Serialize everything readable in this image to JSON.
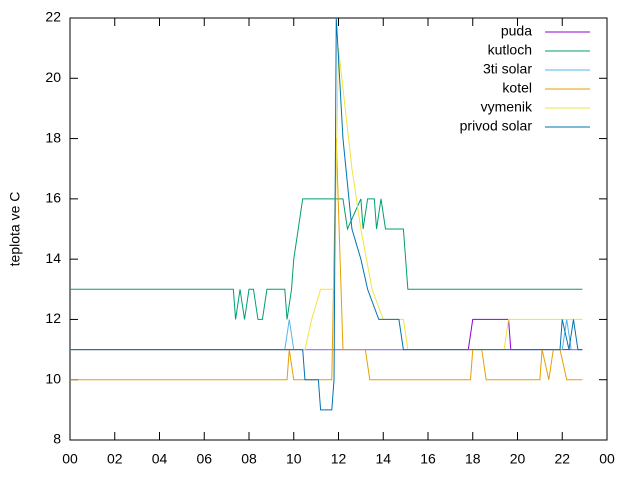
{
  "chart_data": {
    "type": "line",
    "ylabel": "teplota ve C",
    "xlim": [
      0,
      24
    ],
    "xticks": [
      {
        "value": 0,
        "label": "00"
      },
      {
        "value": 2,
        "label": "02"
      },
      {
        "value": 4,
        "label": "04"
      },
      {
        "value": 6,
        "label": "06"
      },
      {
        "value": 8,
        "label": "08"
      },
      10,
      12,
      14,
      16,
      18,
      20,
      22,
      {
        "value": 24,
        "label": "00"
      }
    ],
    "ylim": [
      8,
      22
    ],
    "yticks": [
      8,
      10,
      12,
      14,
      16,
      18,
      20,
      22
    ],
    "grid": false,
    "legend": "top-right",
    "series": [
      {
        "name": "puda",
        "color": "#9400d3",
        "x": [
          0,
          17.8,
          18,
          19.6,
          19.7,
          22.9
        ],
        "values": [
          11,
          11,
          12,
          12,
          11,
          11
        ]
      },
      {
        "name": "kutloch",
        "color": "#009e73",
        "x": [
          0,
          7.3,
          7.4,
          7.6,
          7.8,
          8.0,
          8.2,
          8.4,
          8.6,
          8.8,
          9.6,
          9.7,
          9.9,
          10.0,
          10.4,
          12.2,
          12.4,
          13.0,
          13.1,
          13.3,
          13.6,
          13.7,
          13.9,
          14.1,
          14.9,
          15.1,
          22.9
        ],
        "values": [
          13,
          13,
          12,
          13,
          12,
          13,
          13,
          12,
          12,
          13,
          13,
          12,
          13,
          14,
          16,
          16,
          15,
          16,
          15,
          16,
          16,
          15,
          16,
          15,
          15,
          13,
          13
        ]
      },
      {
        "name": "3ti solar",
        "color": "#56b4e9",
        "x": [
          0,
          9.6,
          9.8,
          10.0,
          22,
          22.2,
          22.4,
          22.9
        ],
        "values": [
          11,
          11,
          12,
          11,
          11,
          12,
          11,
          11
        ]
      },
      {
        "name": "kotel",
        "color": "#e69f00",
        "x": [
          0,
          9.7,
          9.8,
          10.0,
          11.7,
          11.9,
          12.2,
          13.2,
          13.4,
          17.9,
          18.0,
          18.4,
          18.6,
          21.0,
          21.1,
          21.4,
          21.6,
          21.9,
          22.2,
          22.9
        ],
        "values": [
          10,
          10,
          11,
          10,
          10,
          18,
          11,
          11,
          10,
          10,
          11,
          11,
          10,
          10,
          11,
          10,
          11,
          11,
          10,
          10
        ]
      },
      {
        "name": "vymenik",
        "color": "#f0e442",
        "x": [
          0,
          10.5,
          10.8,
          11.2,
          11.8,
          12.0,
          12.6,
          13.0,
          13.5,
          14.0,
          14.9,
          15.1,
          19.4,
          19.6,
          22.9
        ],
        "values": [
          11,
          11,
          12,
          13,
          13,
          21,
          17,
          15,
          13,
          12,
          12,
          11,
          11,
          12,
          12
        ]
      },
      {
        "name": "privod solar",
        "color": "#0072b2",
        "x": [
          0,
          10.4,
          10.5,
          11.1,
          11.2,
          11.7,
          11.8,
          11.9,
          12.2,
          12.6,
          13.0,
          13.3,
          13.8,
          14.7,
          14.9,
          21.9,
          22.0,
          22.3,
          22.5,
          22.7,
          22.9
        ],
        "values": [
          11,
          11,
          10,
          10,
          9,
          9,
          10,
          22,
          18,
          15,
          14,
          13,
          12,
          12,
          11,
          11,
          12,
          11,
          12,
          11,
          11
        ]
      }
    ]
  }
}
